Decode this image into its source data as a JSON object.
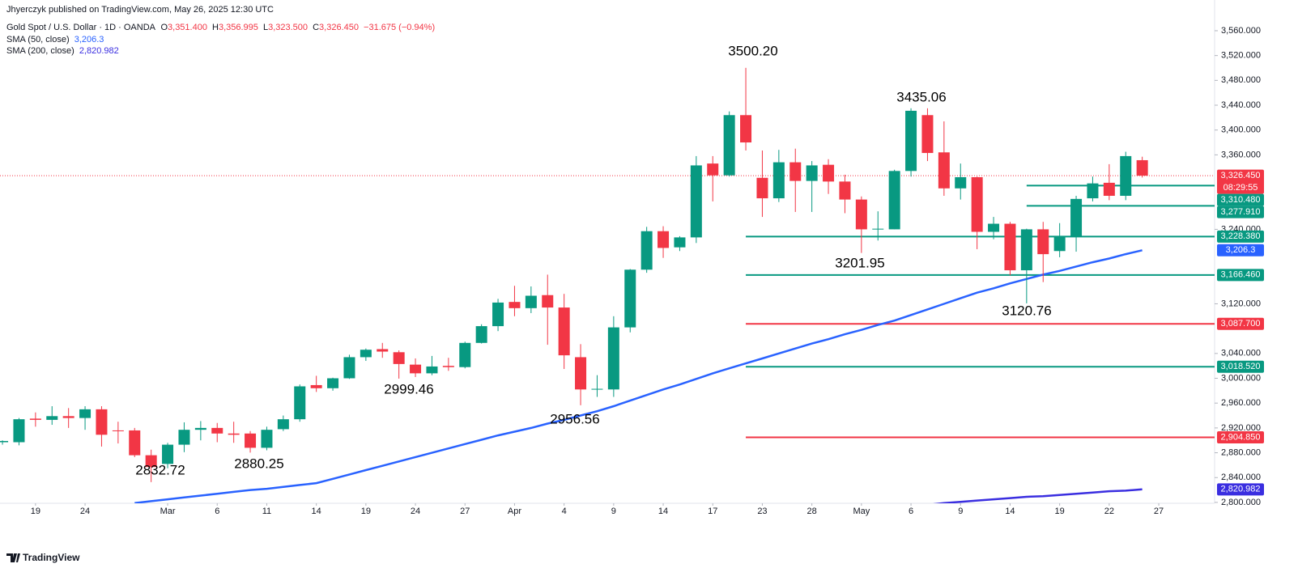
{
  "header": {
    "publisher": "Jhyerczyk published on TradingView.com, May 26, 2025 12:30 UTC",
    "footer": "TradingView"
  },
  "chart_data": {
    "type": "candlestick",
    "title": "Gold Spot / U.S. Dollar · 1D · OANDA",
    "ohlc_legend": [
      {
        "key": "O",
        "value": "3,351.400"
      },
      {
        "key": "H",
        "value": "3,356.995"
      },
      {
        "key": "L",
        "value": "3,323.500"
      },
      {
        "key": "C",
        "value": "3,326.450"
      }
    ],
    "change": "−31.675 (−0.94%)",
    "up_color": "#089981",
    "down_color": "#f23645",
    "open": [
      2897,
      2897,
      2935,
      2933,
      2939,
      2936,
      2950,
      2916,
      2916,
      2876,
      2862,
      2893,
      2917,
      2920,
      2911,
      2911,
      2888,
      2918,
      2934,
      2989,
      2984,
      3000,
      3034,
      3047,
      3042,
      3022,
      3008,
      3020,
      3018,
      3057,
      3084,
      3123,
      3113,
      3134,
      3114,
      3034,
      2982,
      2982,
      3082,
      3175,
      3237,
      3211,
      3227,
      3346,
      3327,
      3424,
      3323,
      3290,
      3348,
      3318,
      3344,
      3317,
      3288,
      3240,
      3240,
      3334,
      3424,
      3364,
      3306,
      3324,
      3236,
      3249,
      3174,
      3240,
      3205,
      3229,
      3290,
      3315,
      3294,
      3351.4
    ],
    "high": [
      2900,
      2936,
      2945,
      2955,
      2952,
      2955,
      2955,
      2930,
      2920,
      2885,
      2896,
      2929,
      2931,
      2928,
      2930,
      2915,
      2922,
      2940,
      2990,
      3004,
      3001,
      3038,
      3048,
      3057,
      3045,
      3032,
      3036,
      3033,
      3059,
      3087,
      3128,
      3149,
      3148,
      3167,
      3136,
      3055,
      3005,
      3100,
      3176,
      3244,
      3245,
      3229,
      3358,
      3358,
      3430,
      3500.2,
      3367,
      3368,
      3370,
      3350,
      3353,
      3328,
      3293,
      3269,
      3336,
      3435.06,
      3435,
      3414,
      3346,
      3325,
      3260,
      3252,
      3241,
      3252,
      3250,
      3294,
      3325,
      3345,
      3365,
      3356.995
    ],
    "low": [
      2893,
      2892,
      2922,
      2925,
      2920,
      2917,
      2890,
      2895,
      2873,
      2832.72,
      2855,
      2881,
      2900,
      2897,
      2896,
      2880.25,
      2884,
      2915,
      2930,
      2978,
      2980,
      2999,
      3028,
      3033,
      2999.46,
      3002,
      3005,
      3012,
      3016,
      3056,
      3076,
      3100,
      3105,
      3054,
      3015,
      2956.56,
      2970,
      2970,
      3074,
      3170,
      3194,
      3205,
      3218,
      3285,
      3325,
      3367,
      3260,
      3284,
      3268,
      3268,
      3297,
      3266,
      3201.95,
      3222,
      3240,
      3325,
      3350,
      3294,
      3288,
      3208,
      3224,
      3166,
      3120.76,
      3155,
      3195,
      3204,
      3285,
      3287,
      3287,
      3323.5
    ],
    "close": [
      2899,
      2934,
      2933,
      2939,
      2936,
      2950,
      2909,
      2915,
      2876,
      2857,
      2893,
      2917,
      2920,
      2911,
      2909,
      2888,
      2917,
      2934,
      2987,
      2984,
      3000,
      3034,
      3046,
      3043,
      3023,
      3008,
      3019,
      3018,
      3057,
      3084,
      3122,
      3113,
      3133,
      3114,
      3037,
      2982,
      2983,
      3082,
      3175,
      3237,
      3210,
      3227,
      3343,
      3327,
      3424,
      3380,
      3290,
      3348,
      3318,
      3343,
      3317,
      3288,
      3240,
      3241,
      3334,
      3431,
      3363,
      3306,
      3324,
      3236,
      3249,
      3174,
      3240,
      3200,
      3229,
      3289,
      3314,
      3294,
      3358,
      3326.45
    ],
    "last_price_label": "3,326.450",
    "countdown": "08:29:55",
    "series": [
      {
        "name": "SMA (50, close)",
        "color": "#2962ff",
        "value_label": "3,206.3",
        "values": [
          null,
          null,
          null,
          null,
          null,
          null,
          null,
          null,
          2799,
          2802,
          2805,
          2808,
          2811,
          2814,
          2817,
          2820,
          2822,
          2825,
          2828,
          2831,
          2838,
          2845,
          2852,
          2859,
          2866,
          2873,
          2880,
          2887,
          2894,
          2901,
          2908,
          2914,
          2920,
          2927,
          2933,
          2940,
          2947,
          2955,
          2964,
          2973,
          2982,
          2990,
          2999,
          3008,
          3016,
          3024,
          3032,
          3040,
          3048,
          3056,
          3063,
          3071,
          3078,
          3086,
          3093,
          3102,
          3111,
          3120,
          3129,
          3138,
          3145,
          3153,
          3160,
          3167,
          3173,
          3180,
          3187,
          3193,
          3200,
          3206.3
        ]
      },
      {
        "name": "SMA (200, close)",
        "color": "#3a2ee0",
        "value_label": "2,820.982",
        "values": [
          null,
          null,
          null,
          null,
          null,
          null,
          null,
          null,
          null,
          null,
          null,
          null,
          null,
          null,
          null,
          null,
          null,
          null,
          null,
          null,
          null,
          null,
          null,
          null,
          null,
          null,
          null,
          null,
          null,
          null,
          null,
          null,
          null,
          null,
          null,
          null,
          null,
          null,
          null,
          null,
          null,
          null,
          null,
          null,
          null,
          null,
          null,
          null,
          null,
          null,
          null,
          null,
          null,
          null,
          null,
          null,
          2796,
          2799,
          2801,
          2803,
          2805,
          2807,
          2809,
          2810,
          2812,
          2814,
          2816,
          2818,
          2819,
          2820.982
        ]
      }
    ],
    "levels": [
      {
        "value": 3310.48,
        "label": "3,310.480",
        "color": "#089981"
      },
      {
        "value": 3277.91,
        "label": "3,277.910",
        "color": "#089981"
      },
      {
        "value": 3228.38,
        "label": "3,228.380",
        "color": "#089981"
      },
      {
        "value": 3166.46,
        "label": "3,166.460",
        "color": "#089981"
      },
      {
        "value": 3087.7,
        "label": "3,087.700",
        "color": "#f23645"
      },
      {
        "value": 3018.52,
        "label": "3,018.520",
        "color": "#089981"
      },
      {
        "value": 2904.85,
        "label": "2,904.850",
        "color": "#f23645"
      }
    ],
    "annotations": [
      "3500.20",
      "3435.06",
      "3201.95",
      "3120.76",
      "2999.46",
      "2956.56",
      "2880.25",
      "2832.72"
    ],
    "xlim": [
      -0.15,
      73.38
    ],
    "xticks": [
      {
        "value": 2,
        "label": "19"
      },
      {
        "value": 5,
        "label": "24"
      },
      {
        "value": 10,
        "label": "Mar"
      },
      {
        "value": 13,
        "label": "6"
      },
      {
        "value": 16,
        "label": "11"
      },
      {
        "value": 19,
        "label": "14"
      },
      {
        "value": 22,
        "label": "19"
      },
      {
        "value": 25,
        "label": "24"
      },
      {
        "value": 28,
        "label": "27"
      },
      {
        "value": 31,
        "label": "Apr"
      },
      {
        "value": 34,
        "label": "4"
      },
      {
        "value": 37,
        "label": "9"
      },
      {
        "value": 40,
        "label": "14"
      },
      {
        "value": 43,
        "label": "17"
      },
      {
        "value": 46,
        "label": "23"
      },
      {
        "value": 49,
        "label": "28"
      },
      {
        "value": 52,
        "label": "May"
      },
      {
        "value": 55,
        "label": "6"
      },
      {
        "value": 58,
        "label": "9"
      },
      {
        "value": 61,
        "label": "14"
      },
      {
        "value": 64,
        "label": "19"
      },
      {
        "value": 67,
        "label": "22"
      },
      {
        "value": 70,
        "label": "27"
      }
    ],
    "ylim": [
      2798.6,
      3609.5
    ],
    "yticks": [
      {
        "value": 3560,
        "label": "3,560.000"
      },
      {
        "value": 3520,
        "label": "3,520.000"
      },
      {
        "value": 3480,
        "label": "3,480.000"
      },
      {
        "value": 3440,
        "label": "3,440.000"
      },
      {
        "value": 3400,
        "label": "3,400.000"
      },
      {
        "value": 3360,
        "label": "3,360.000"
      },
      {
        "value": 3240,
        "label": "3,240.000"
      },
      {
        "value": 3120,
        "label": "3,120.000"
      },
      {
        "value": 3040,
        "label": "3,040.000"
      },
      {
        "value": 3000,
        "label": "3,000.000"
      },
      {
        "value": 2960,
        "label": "2,960.000"
      },
      {
        "value": 2920,
        "label": "2,920.000"
      },
      {
        "value": 2880,
        "label": "2,880.000"
      },
      {
        "value": 2840,
        "label": "2,840.000"
      },
      {
        "value": 2800,
        "label": "2,800.000"
      }
    ]
  }
}
